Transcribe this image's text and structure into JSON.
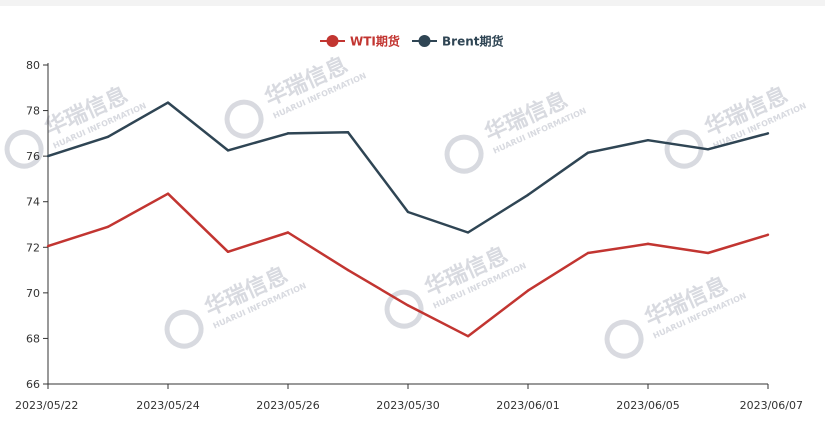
{
  "chart_data": {
    "type": "line",
    "x": [
      "2023/05/22",
      "2023/05/23",
      "2023/05/24",
      "2023/05/25",
      "2023/05/26",
      "2023/05/29",
      "2023/05/30",
      "2023/05/31",
      "2023/06/01",
      "2023/06/02",
      "2023/06/05",
      "2023/06/06",
      "2023/06/07"
    ],
    "x_tick_labels": [
      "2023/05/22",
      "2023/05/24",
      "2023/05/26",
      "2023/05/30",
      "2023/06/01",
      "2023/06/05",
      "2023/06/07"
    ],
    "y_tick_labels": [
      "66",
      "68",
      "70",
      "72",
      "74",
      "76",
      "78",
      "80"
    ],
    "ylim": [
      66,
      80
    ],
    "grid": false,
    "legend_position": "top-center",
    "series": [
      {
        "name": "WTI期货",
        "color": "#c23531",
        "values": [
          72.05,
          72.9,
          74.35,
          71.8,
          72.65,
          71.0,
          69.45,
          68.1,
          70.1,
          71.75,
          72.15,
          71.75,
          72.55
        ]
      },
      {
        "name": "Brent期货",
        "color": "#2f4554",
        "values": [
          76.0,
          76.85,
          78.35,
          76.25,
          77.0,
          77.05,
          73.55,
          72.65,
          74.3,
          76.15,
          76.7,
          76.3,
          77.0
        ]
      }
    ]
  },
  "watermark": {
    "text": "华瑞信息",
    "subtext": "HUARUI INFORMATION",
    "color": "#b9bcc7"
  }
}
